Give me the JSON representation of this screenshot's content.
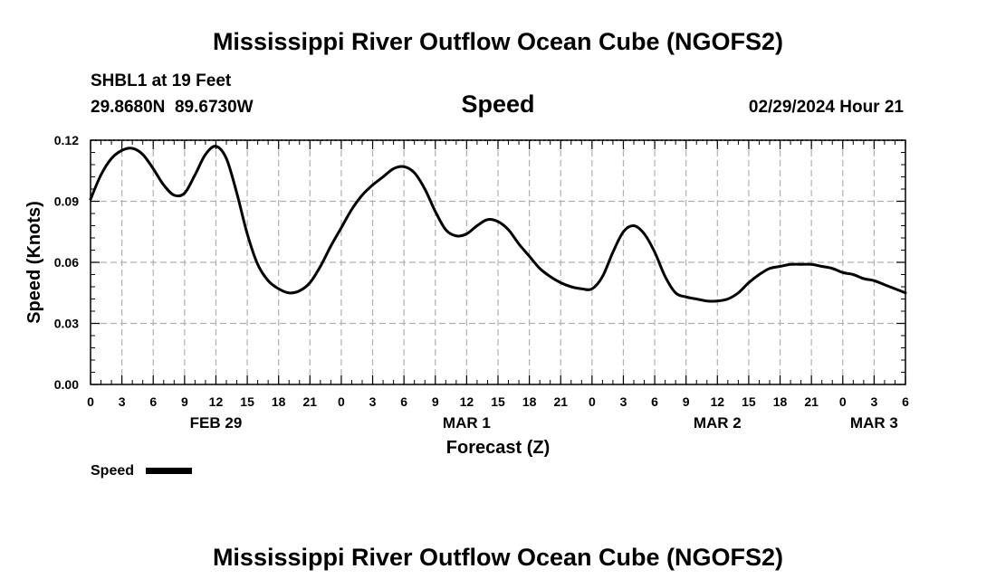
{
  "header": {
    "title": "Mississippi River Outflow Ocean Cube (NGOFS2)",
    "station": "SHBL1 at 19 Feet",
    "coords": "29.8680N  89.6730W",
    "panel_title": "Speed",
    "timestamp": "02/29/2024 Hour 21"
  },
  "footer": {
    "title": "Mississippi River Outflow Ocean Cube (NGOFS2)"
  },
  "legend": {
    "label": "Speed"
  },
  "colors": {
    "line": "#000000",
    "grid": "#b0b0b0",
    "axis": "#000000"
  },
  "chart_data": {
    "type": "line",
    "title": "Speed",
    "xlabel": "Forecast (Z)",
    "ylabel": "Speed (Knots)",
    "ylim": [
      0,
      0.12
    ],
    "yticks": [
      0,
      0.03,
      0.06,
      0.09,
      0.12
    ],
    "ytick_labels": [
      "0.00",
      "0.03",
      "0.06",
      "0.09",
      "0.12"
    ],
    "xlim_hours": [
      0,
      78
    ],
    "xticks_hours": [
      0,
      3,
      6,
      9,
      12,
      15,
      18,
      21,
      24,
      27,
      30,
      33,
      36,
      39,
      42,
      45,
      48,
      51,
      54,
      57,
      60,
      63,
      66,
      69,
      72,
      75,
      78
    ],
    "xtick_labels": [
      "0",
      "3",
      "6",
      "9",
      "12",
      "15",
      "18",
      "21",
      "0",
      "3",
      "6",
      "9",
      "12",
      "15",
      "18",
      "21",
      "0",
      "3",
      "6",
      "9",
      "12",
      "15",
      "18",
      "21",
      "0",
      "3",
      "6"
    ],
    "date_labels": [
      {
        "label": "FEB 29",
        "hour": 12
      },
      {
        "label": "MAR 1",
        "hour": 36
      },
      {
        "label": "MAR 2",
        "hour": 60
      },
      {
        "label": "MAR 3",
        "hour": 75
      }
    ],
    "grid": true,
    "legend_position": "bottom-left",
    "series": [
      {
        "name": "Speed",
        "x": [
          0,
          1,
          2,
          3,
          4,
          5,
          6,
          7,
          8,
          9,
          10,
          11,
          12,
          13,
          14,
          15,
          16,
          17,
          18,
          19,
          20,
          21,
          22,
          23,
          24,
          25,
          26,
          27,
          28,
          29,
          30,
          31,
          32,
          33,
          34,
          35,
          36,
          37,
          38,
          39,
          40,
          41,
          42,
          43,
          44,
          45,
          46,
          47,
          48,
          49,
          50,
          51,
          52,
          53,
          54,
          55,
          56,
          57,
          58,
          59,
          60,
          61,
          62,
          63,
          64,
          65,
          66,
          67,
          68,
          69,
          70,
          71,
          72,
          73,
          74,
          75,
          76,
          77,
          78
        ],
        "values": [
          0.091,
          0.103,
          0.111,
          0.115,
          0.116,
          0.113,
          0.106,
          0.098,
          0.093,
          0.094,
          0.103,
          0.113,
          0.117,
          0.111,
          0.094,
          0.074,
          0.059,
          0.051,
          0.047,
          0.045,
          0.046,
          0.05,
          0.058,
          0.068,
          0.077,
          0.086,
          0.093,
          0.098,
          0.102,
          0.106,
          0.107,
          0.104,
          0.096,
          0.085,
          0.076,
          0.073,
          0.074,
          0.078,
          0.081,
          0.08,
          0.076,
          0.069,
          0.063,
          0.057,
          0.053,
          0.05,
          0.048,
          0.047,
          0.047,
          0.053,
          0.065,
          0.075,
          0.078,
          0.074,
          0.065,
          0.053,
          0.045,
          0.043,
          0.042,
          0.041,
          0.041,
          0.042,
          0.045,
          0.05,
          0.054,
          0.057,
          0.058,
          0.059,
          0.059,
          0.059,
          0.058,
          0.057,
          0.055,
          0.054,
          0.052,
          0.051,
          0.049,
          0.047,
          0.045
        ]
      }
    ]
  }
}
